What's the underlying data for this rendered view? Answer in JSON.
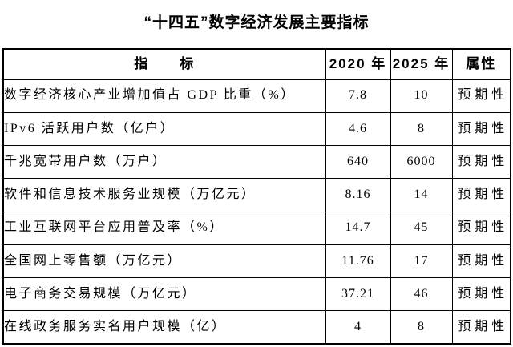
{
  "title": "“十四五”数字经济发展主要指标",
  "table": {
    "headers": {
      "indicator": "指　　标",
      "y2020": "2020 年",
      "y2025": "2025 年",
      "attribute": "属性"
    },
    "rows": [
      {
        "indicator": "数字经济核心产业增加值占 GDP 比重（%）",
        "v2020": "7.8",
        "v2025": "10",
        "attr": "预期性"
      },
      {
        "indicator": "IPv6 活跃用户数（亿户）",
        "v2020": "4.6",
        "v2025": "8",
        "attr": "预期性"
      },
      {
        "indicator": "千兆宽带用户数（万户）",
        "v2020": "640",
        "v2025": "6000",
        "attr": "预期性"
      },
      {
        "indicator": "软件和信息技术服务业规模（万亿元）",
        "v2020": "8.16",
        "v2025": "14",
        "attr": "预期性"
      },
      {
        "indicator": "工业互联网平台应用普及率（%）",
        "v2020": "14.7",
        "v2025": "45",
        "attr": "预期性"
      },
      {
        "indicator": "全国网上零售额（万亿元）",
        "v2020": "11.76",
        "v2025": "17",
        "attr": "预期性"
      },
      {
        "indicator": "电子商务交易规模（万亿元）",
        "v2020": "37.21",
        "v2025": "46",
        "attr": "预期性"
      },
      {
        "indicator": "在线政务服务实名用户规模（亿）",
        "v2020": "4",
        "v2025": "8",
        "attr": "预期性"
      }
    ]
  }
}
